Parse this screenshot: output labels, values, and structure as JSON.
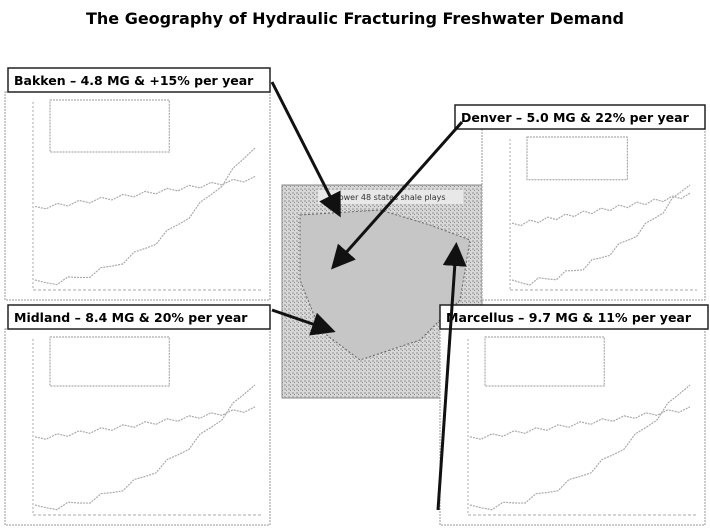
{
  "title": "The Geography of Hydraulic Fracturing Freshwater Demand",
  "callouts": [
    {
      "label": "Bakken – 4.8 MG & +15% per year"
    },
    {
      "label": "Denver – 5.0 MG & 22% per year"
    },
    {
      "label": "Midland – 8.4 MG & 20% per year"
    },
    {
      "label": "Marcellus – 9.7 MG & 11% per year"
    }
  ],
  "map": {
    "title": "Lower 48 states shale plays"
  }
}
